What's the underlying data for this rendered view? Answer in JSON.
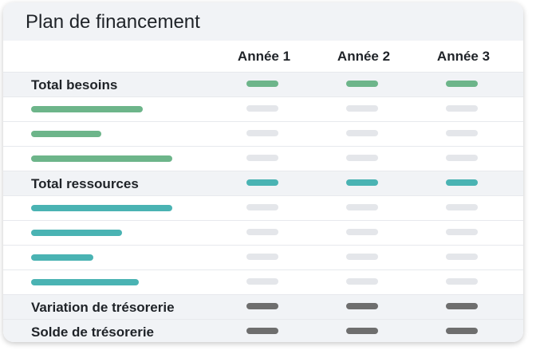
{
  "title": "Plan de financement",
  "columns": [
    "Année 1",
    "Année 2",
    "Année 3"
  ],
  "colors": {
    "besoins": "#6db58a",
    "ressources": "#4ab3b3",
    "dark": "#6e6e6e",
    "placeholder": "#e4e6ea"
  },
  "rows": [
    {
      "type": "total",
      "label": "Total besoins",
      "color": "besoins"
    },
    {
      "type": "item",
      "color": "besoins",
      "fill": 0.27
    },
    {
      "type": "item",
      "color": "besoins",
      "fill": 0.17
    },
    {
      "type": "item",
      "color": "besoins",
      "fill": 0.34
    },
    {
      "type": "total",
      "label": "Total ressources",
      "color": "ressources"
    },
    {
      "type": "item",
      "color": "ressources",
      "fill": 0.34
    },
    {
      "type": "item",
      "color": "ressources",
      "fill": 0.22
    },
    {
      "type": "item",
      "color": "ressources",
      "fill": 0.15
    },
    {
      "type": "item",
      "color": "ressources",
      "fill": 0.26
    },
    {
      "type": "total",
      "label": "Variation de trésorerie",
      "color": "dark"
    },
    {
      "type": "total",
      "label": "Solde de trésorerie",
      "color": "dark"
    }
  ]
}
